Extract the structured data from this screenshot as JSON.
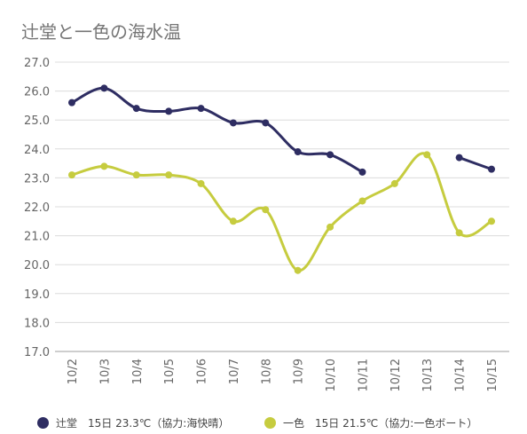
{
  "chart_data": {
    "type": "line",
    "title": "辻堂と一色の海水温",
    "categories": [
      "10/2",
      "10/3",
      "10/4",
      "10/5",
      "10/6",
      "10/7",
      "10/8",
      "10/9",
      "10/10",
      "10/11",
      "10/12",
      "10/13",
      "10/14",
      "10/15"
    ],
    "y_ticks": [
      "27.0",
      "26.0",
      "25.0",
      "24.0",
      "23.0",
      "22.0",
      "21.0",
      "20.0",
      "19.0",
      "18.0",
      "17.0"
    ],
    "ylim": [
      17,
      27
    ],
    "grid": true,
    "legend_position": "bottom",
    "series": [
      {
        "name": "辻堂　15日 23.3℃（協力:海快晴）",
        "color": "#2e2d62",
        "values": [
          25.6,
          26.1,
          25.4,
          25.3,
          25.4,
          24.9,
          24.9,
          23.9,
          23.8,
          23.2,
          null,
          null,
          23.7,
          23.3
        ]
      },
      {
        "name": "一色　15日 21.5℃（協力:一色ボート）",
        "color": "#c6cc3f",
        "values": [
          23.1,
          23.4,
          23.1,
          23.1,
          22.8,
          21.5,
          21.9,
          19.8,
          21.3,
          22.2,
          22.8,
          23.8,
          21.1,
          21.5
        ]
      }
    ]
  }
}
